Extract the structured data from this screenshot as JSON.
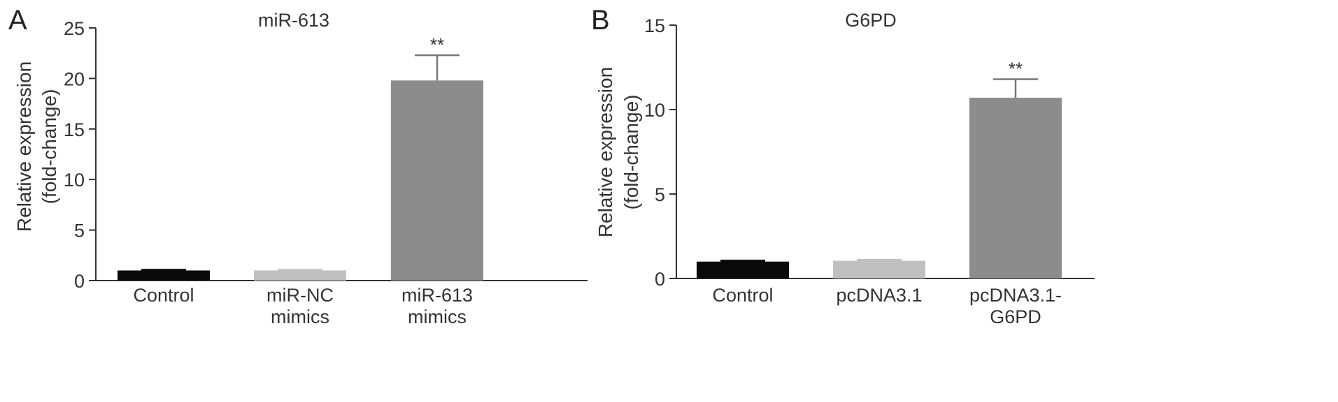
{
  "chart_data": [
    {
      "type": "bar",
      "panel": "A",
      "title": "miR-613",
      "ylabel": [
        "Relative expression",
        "(fold-change)"
      ],
      "xlabel": "",
      "ylim": [
        0,
        25
      ],
      "yticks": [
        0,
        5,
        10,
        15,
        20,
        25
      ],
      "categories": [
        [
          "Control"
        ],
        [
          "miR-NC",
          "mimics"
        ],
        [
          "miR-613",
          "mimics"
        ]
      ],
      "values": [
        1.0,
        1.0,
        19.8
      ],
      "errors": [
        0.05,
        0.05,
        2.5
      ],
      "colors": [
        "#0a0a0a",
        "#c0c0c0",
        "#8c8c8c"
      ],
      "significance": [
        "",
        "",
        "**"
      ],
      "grid": false
    },
    {
      "type": "bar",
      "panel": "B",
      "title": "G6PD",
      "ylabel": [
        "Relative expression",
        "(fold-change)"
      ],
      "xlabel": "",
      "ylim": [
        0,
        15
      ],
      "yticks": [
        0,
        5,
        10,
        15
      ],
      "categories": [
        [
          "Control"
        ],
        [
          "pcDNA3.1"
        ],
        [
          "pcDNA3.1-",
          "G6PD"
        ]
      ],
      "values": [
        1.0,
        1.05,
        10.7
      ],
      "errors": [
        0.05,
        0.05,
        1.1
      ],
      "colors": [
        "#0a0a0a",
        "#c0c0c0",
        "#8c8c8c"
      ],
      "significance": [
        "",
        "",
        "**"
      ],
      "grid": false
    }
  ]
}
